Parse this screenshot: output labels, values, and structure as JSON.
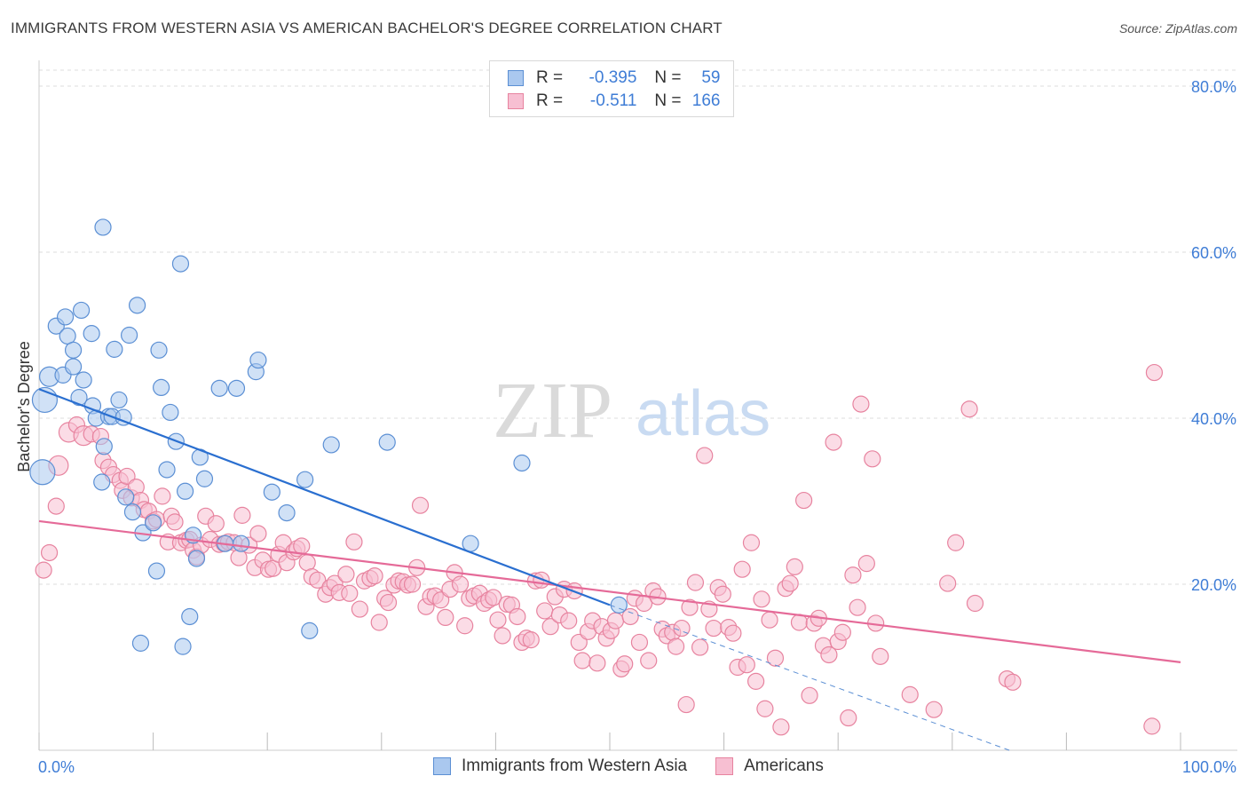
{
  "title": "IMMIGRANTS FROM WESTERN ASIA VS AMERICAN BACHELOR'S DEGREE CORRELATION CHART",
  "source": "Source: ZipAtlas.com",
  "watermark": {
    "zip": "ZIP",
    "atlas": "atlas"
  },
  "legend": {
    "r_label": "R =",
    "n_label": "N =",
    "series1": {
      "r": "-0.395",
      "n": "59"
    },
    "series2": {
      "r": "-0.511",
      "n": "166"
    }
  },
  "colors": {
    "blue_fill": "#aac8ef",
    "blue_stroke": "#5b8fd4",
    "blue_line": "#2a6fd0",
    "pink_fill": "#f7bfd2",
    "pink_stroke": "#e7839f",
    "pink_line": "#e56a98",
    "axis_label": "#3f7dd6",
    "grid": "#dcdcdc"
  },
  "chart_data": {
    "type": "scatter",
    "title": "IMMIGRANTS FROM WESTERN ASIA VS AMERICAN BACHELOR'S DEGREE CORRELATION CHART",
    "xlabel": "",
    "ylabel": "Bachelor's Degree",
    "xlim": [
      0,
      100
    ],
    "ylim": [
      0,
      80
    ],
    "x_tick_labels": [
      "0.0%",
      "100.0%"
    ],
    "y_ticks": [
      20,
      40,
      60,
      80
    ],
    "y_tick_labels": [
      "20.0%",
      "40.0%",
      "60.0%",
      "80.0%"
    ],
    "legend_position": "bottom",
    "series": [
      {
        "name": "Immigrants from Western Asia",
        "r": -0.395,
        "n": 59,
        "trend": {
          "x0": 0,
          "y0": 43.5,
          "x1": 50,
          "y1": 17.5,
          "dashed_to_x": 85,
          "dashed_to_y": 0
        },
        "points": [
          [
            0.5,
            42.2,
            14
          ],
          [
            0.3,
            33.5,
            14
          ],
          [
            0.9,
            45.0,
            11
          ],
          [
            2.1,
            45.2,
            9
          ],
          [
            1.5,
            51.1,
            9
          ],
          [
            2.3,
            52.2,
            9
          ],
          [
            2.5,
            49.9,
            9
          ],
          [
            3.0,
            46.2,
            9
          ],
          [
            3.0,
            48.2,
            9
          ],
          [
            3.7,
            53.0,
            9
          ],
          [
            3.9,
            44.6,
            9
          ],
          [
            3.5,
            42.5,
            9
          ],
          [
            4.6,
            50.2,
            9
          ],
          [
            4.7,
            41.5,
            9
          ],
          [
            5.0,
            40.0,
            9
          ],
          [
            5.5,
            32.3,
            9
          ],
          [
            5.7,
            36.6,
            9
          ],
          [
            6.1,
            40.2,
            9
          ],
          [
            5.6,
            63.0,
            9
          ],
          [
            6.4,
            40.2,
            9
          ],
          [
            6.6,
            48.3,
            9
          ],
          [
            7.0,
            42.2,
            9
          ],
          [
            7.4,
            40.1,
            9
          ],
          [
            7.6,
            30.5,
            9
          ],
          [
            7.9,
            50.0,
            9
          ],
          [
            8.2,
            28.7,
            9
          ],
          [
            8.6,
            53.6,
            9
          ],
          [
            9.1,
            26.2,
            9
          ],
          [
            8.9,
            12.9,
            9
          ],
          [
            10.0,
            27.4,
            9
          ],
          [
            10.3,
            21.6,
            9
          ],
          [
            10.5,
            48.2,
            9
          ],
          [
            10.7,
            43.7,
            9
          ],
          [
            11.2,
            33.8,
            9
          ],
          [
            11.5,
            40.7,
            9
          ],
          [
            12.0,
            37.2,
            9
          ],
          [
            12.4,
            58.6,
            9
          ],
          [
            12.8,
            31.2,
            9
          ],
          [
            12.6,
            12.5,
            9
          ],
          [
            13.2,
            16.1,
            9
          ],
          [
            13.5,
            25.9,
            9
          ],
          [
            13.8,
            23.1,
            9
          ],
          [
            14.1,
            35.3,
            9
          ],
          [
            14.5,
            32.7,
            9
          ],
          [
            15.8,
            43.6,
            9
          ],
          [
            16.3,
            24.9,
            9
          ],
          [
            17.3,
            43.6,
            9
          ],
          [
            17.7,
            24.9,
            9
          ],
          [
            19.0,
            45.6,
            9
          ],
          [
            19.2,
            47.0,
            9
          ],
          [
            20.4,
            31.1,
            9
          ],
          [
            21.7,
            28.6,
            9
          ],
          [
            23.3,
            32.6,
            9
          ],
          [
            23.7,
            14.4,
            9
          ],
          [
            25.6,
            36.8,
            9
          ],
          [
            30.5,
            37.1,
            9
          ],
          [
            37.8,
            24.9,
            9
          ],
          [
            42.3,
            34.6,
            9
          ],
          [
            50.8,
            17.5,
            9
          ]
        ]
      },
      {
        "name": "Americans",
        "r": -0.511,
        "n": 166,
        "trend": {
          "x0": 0,
          "y0": 27.6,
          "x1": 100,
          "y1": 10.6
        },
        "points": [
          [
            0.4,
            21.7,
            9
          ],
          [
            0.9,
            23.8,
            9
          ],
          [
            1.5,
            29.4,
            9
          ],
          [
            1.7,
            34.3,
            11
          ],
          [
            2.6,
            38.3,
            11
          ],
          [
            3.3,
            39.2,
            9
          ],
          [
            3.9,
            37.9,
            11
          ],
          [
            4.6,
            38.1,
            9
          ],
          [
            5.4,
            37.8,
            9
          ],
          [
            5.6,
            34.9,
            9
          ],
          [
            6.1,
            34.1,
            9
          ],
          [
            6.5,
            33.2,
            9
          ],
          [
            7.1,
            32.5,
            9
          ],
          [
            7.3,
            31.3,
            9
          ],
          [
            7.7,
            33.0,
            9
          ],
          [
            8.1,
            30.4,
            9
          ],
          [
            8.5,
            31.7,
            9
          ],
          [
            8.9,
            30.1,
            9
          ],
          [
            9.2,
            29.0,
            9
          ],
          [
            9.6,
            28.8,
            9
          ],
          [
            10.0,
            27.6,
            9
          ],
          [
            10.3,
            27.8,
            9
          ],
          [
            10.8,
            30.6,
            9
          ],
          [
            11.3,
            25.1,
            9
          ],
          [
            11.6,
            28.2,
            9
          ],
          [
            11.9,
            27.5,
            9
          ],
          [
            12.4,
            25.0,
            9
          ],
          [
            12.9,
            25.3,
            9
          ],
          [
            13.2,
            25.4,
            9
          ],
          [
            13.5,
            24.1,
            9
          ],
          [
            13.8,
            23.3,
            9
          ],
          [
            14.2,
            24.7,
            9
          ],
          [
            14.6,
            28.2,
            9
          ],
          [
            15.0,
            25.4,
            9
          ],
          [
            15.5,
            27.3,
            9
          ],
          [
            15.8,
            24.8,
            9
          ],
          [
            16.2,
            24.9,
            9
          ],
          [
            16.6,
            25.1,
            9
          ],
          [
            17.1,
            25.0,
            9
          ],
          [
            17.5,
            23.2,
            9
          ],
          [
            17.8,
            28.3,
            9
          ],
          [
            18.4,
            24.7,
            9
          ],
          [
            18.9,
            22.0,
            9
          ],
          [
            19.2,
            26.1,
            9
          ],
          [
            19.6,
            22.9,
            9
          ],
          [
            20.1,
            21.8,
            9
          ],
          [
            20.5,
            21.9,
            9
          ],
          [
            21.0,
            23.6,
            9
          ],
          [
            21.4,
            25.0,
            9
          ],
          [
            21.7,
            22.6,
            9
          ],
          [
            22.3,
            23.9,
            9
          ],
          [
            22.6,
            24.3,
            9
          ],
          [
            23.0,
            24.6,
            9
          ],
          [
            23.5,
            22.6,
            9
          ],
          [
            23.9,
            20.9,
            9
          ],
          [
            24.4,
            20.5,
            9
          ],
          [
            25.1,
            18.8,
            9
          ],
          [
            25.5,
            19.6,
            9
          ],
          [
            25.9,
            20.1,
            9
          ],
          [
            26.3,
            19.0,
            9
          ],
          [
            26.9,
            21.2,
            9
          ],
          [
            27.2,
            18.9,
            9
          ],
          [
            27.6,
            25.1,
            9
          ],
          [
            28.1,
            17.0,
            9
          ],
          [
            28.5,
            20.4,
            9
          ],
          [
            29.0,
            20.7,
            9
          ],
          [
            29.4,
            21.0,
            9
          ],
          [
            29.8,
            15.4,
            9
          ],
          [
            30.3,
            18.3,
            9
          ],
          [
            30.6,
            17.8,
            9
          ],
          [
            31.1,
            19.9,
            9
          ],
          [
            31.5,
            20.4,
            9
          ],
          [
            31.9,
            20.3,
            9
          ],
          [
            32.3,
            19.9,
            9
          ],
          [
            32.7,
            20.0,
            9
          ],
          [
            33.1,
            22.0,
            9
          ],
          [
            33.4,
            29.5,
            9
          ],
          [
            33.9,
            17.3,
            9
          ],
          [
            34.3,
            18.5,
            9
          ],
          [
            34.7,
            18.6,
            9
          ],
          [
            35.2,
            18.1,
            9
          ],
          [
            35.6,
            16.0,
            9
          ],
          [
            36.0,
            19.4,
            9
          ],
          [
            36.4,
            21.4,
            9
          ],
          [
            36.9,
            20.0,
            9
          ],
          [
            37.3,
            15.0,
            9
          ],
          [
            37.7,
            18.3,
            9
          ],
          [
            38.1,
            18.6,
            9
          ],
          [
            38.6,
            18.9,
            9
          ],
          [
            39.0,
            17.7,
            9
          ],
          [
            39.4,
            18.1,
            9
          ],
          [
            39.8,
            18.4,
            9
          ],
          [
            40.2,
            15.7,
            9
          ],
          [
            40.6,
            13.8,
            9
          ],
          [
            41.0,
            17.6,
            9
          ],
          [
            41.4,
            17.5,
            9
          ],
          [
            41.9,
            16.1,
            9
          ],
          [
            42.3,
            13.0,
            9
          ],
          [
            42.7,
            13.5,
            9
          ],
          [
            43.1,
            13.3,
            9
          ],
          [
            43.5,
            20.4,
            9
          ],
          [
            44.0,
            20.5,
            9
          ],
          [
            44.3,
            16.8,
            9
          ],
          [
            44.8,
            14.9,
            9
          ],
          [
            45.2,
            18.5,
            9
          ],
          [
            45.6,
            16.3,
            9
          ],
          [
            46.0,
            19.4,
            9
          ],
          [
            46.4,
            15.6,
            9
          ],
          [
            46.9,
            19.2,
            9
          ],
          [
            47.3,
            13.0,
            9
          ],
          [
            47.6,
            10.8,
            9
          ],
          [
            48.1,
            14.3,
            9
          ],
          [
            48.5,
            15.6,
            9
          ],
          [
            48.9,
            10.5,
            9
          ],
          [
            49.3,
            14.9,
            9
          ],
          [
            49.7,
            13.5,
            9
          ],
          [
            50.1,
            14.4,
            9
          ],
          [
            50.5,
            15.6,
            9
          ],
          [
            51.0,
            9.8,
            9
          ],
          [
            51.3,
            10.4,
            9
          ],
          [
            51.8,
            16.1,
            9
          ],
          [
            52.2,
            18.3,
            9
          ],
          [
            52.6,
            13.0,
            9
          ],
          [
            53.0,
            17.7,
            9
          ],
          [
            53.4,
            10.8,
            9
          ],
          [
            53.8,
            19.2,
            9
          ],
          [
            54.2,
            18.5,
            9
          ],
          [
            54.6,
            14.6,
            9
          ],
          [
            55.0,
            13.8,
            9
          ],
          [
            55.5,
            14.2,
            9
          ],
          [
            55.8,
            12.5,
            9
          ],
          [
            56.3,
            14.7,
            9
          ],
          [
            56.7,
            5.5,
            9
          ],
          [
            57.0,
            17.2,
            9
          ],
          [
            57.5,
            20.2,
            9
          ],
          [
            57.9,
            12.4,
            9
          ],
          [
            58.3,
            35.5,
            9
          ],
          [
            58.7,
            17.0,
            9
          ],
          [
            59.1,
            14.7,
            9
          ],
          [
            59.5,
            19.6,
            9
          ],
          [
            59.9,
            18.8,
            9
          ],
          [
            60.4,
            14.8,
            9
          ],
          [
            60.8,
            14.1,
            9
          ],
          [
            61.2,
            10.0,
            9
          ],
          [
            61.6,
            21.8,
            9
          ],
          [
            62.0,
            10.3,
            9
          ],
          [
            62.4,
            25.0,
            9
          ],
          [
            62.8,
            8.3,
            9
          ],
          [
            63.3,
            18.2,
            9
          ],
          [
            63.6,
            5.0,
            9
          ],
          [
            64.0,
            15.7,
            9
          ],
          [
            64.5,
            11.1,
            9
          ],
          [
            65.0,
            2.8,
            9
          ],
          [
            65.4,
            19.5,
            9
          ],
          [
            65.8,
            20.1,
            9
          ],
          [
            66.2,
            22.1,
            9
          ],
          [
            66.6,
            15.4,
            9
          ],
          [
            67.0,
            30.1,
            9
          ],
          [
            67.5,
            6.6,
            9
          ],
          [
            67.9,
            15.3,
            9
          ],
          [
            68.3,
            15.9,
            9
          ],
          [
            68.7,
            12.6,
            9
          ],
          [
            69.2,
            11.5,
            9
          ],
          [
            69.6,
            37.1,
            9
          ],
          [
            70.0,
            13.1,
            9
          ],
          [
            70.4,
            14.2,
            9
          ],
          [
            70.9,
            3.9,
            9
          ],
          [
            71.3,
            21.1,
            9
          ],
          [
            71.7,
            17.2,
            9
          ],
          [
            72.0,
            41.7,
            9
          ],
          [
            72.5,
            22.5,
            9
          ],
          [
            73.0,
            35.1,
            9
          ],
          [
            73.3,
            15.3,
            9
          ],
          [
            73.7,
            11.3,
            9
          ],
          [
            76.3,
            6.7,
            9
          ],
          [
            78.4,
            4.9,
            9
          ],
          [
            79.6,
            20.1,
            9
          ],
          [
            80.3,
            25.0,
            9
          ],
          [
            81.5,
            41.1,
            9
          ],
          [
            82.0,
            17.7,
            9
          ],
          [
            84.8,
            8.6,
            9
          ],
          [
            85.3,
            8.2,
            9
          ],
          [
            97.5,
            2.9,
            9
          ],
          [
            97.7,
            45.5,
            9
          ]
        ]
      }
    ]
  },
  "bottom_legend": [
    {
      "label": "Immigrants from Western Asia"
    },
    {
      "label": "Americans"
    }
  ]
}
